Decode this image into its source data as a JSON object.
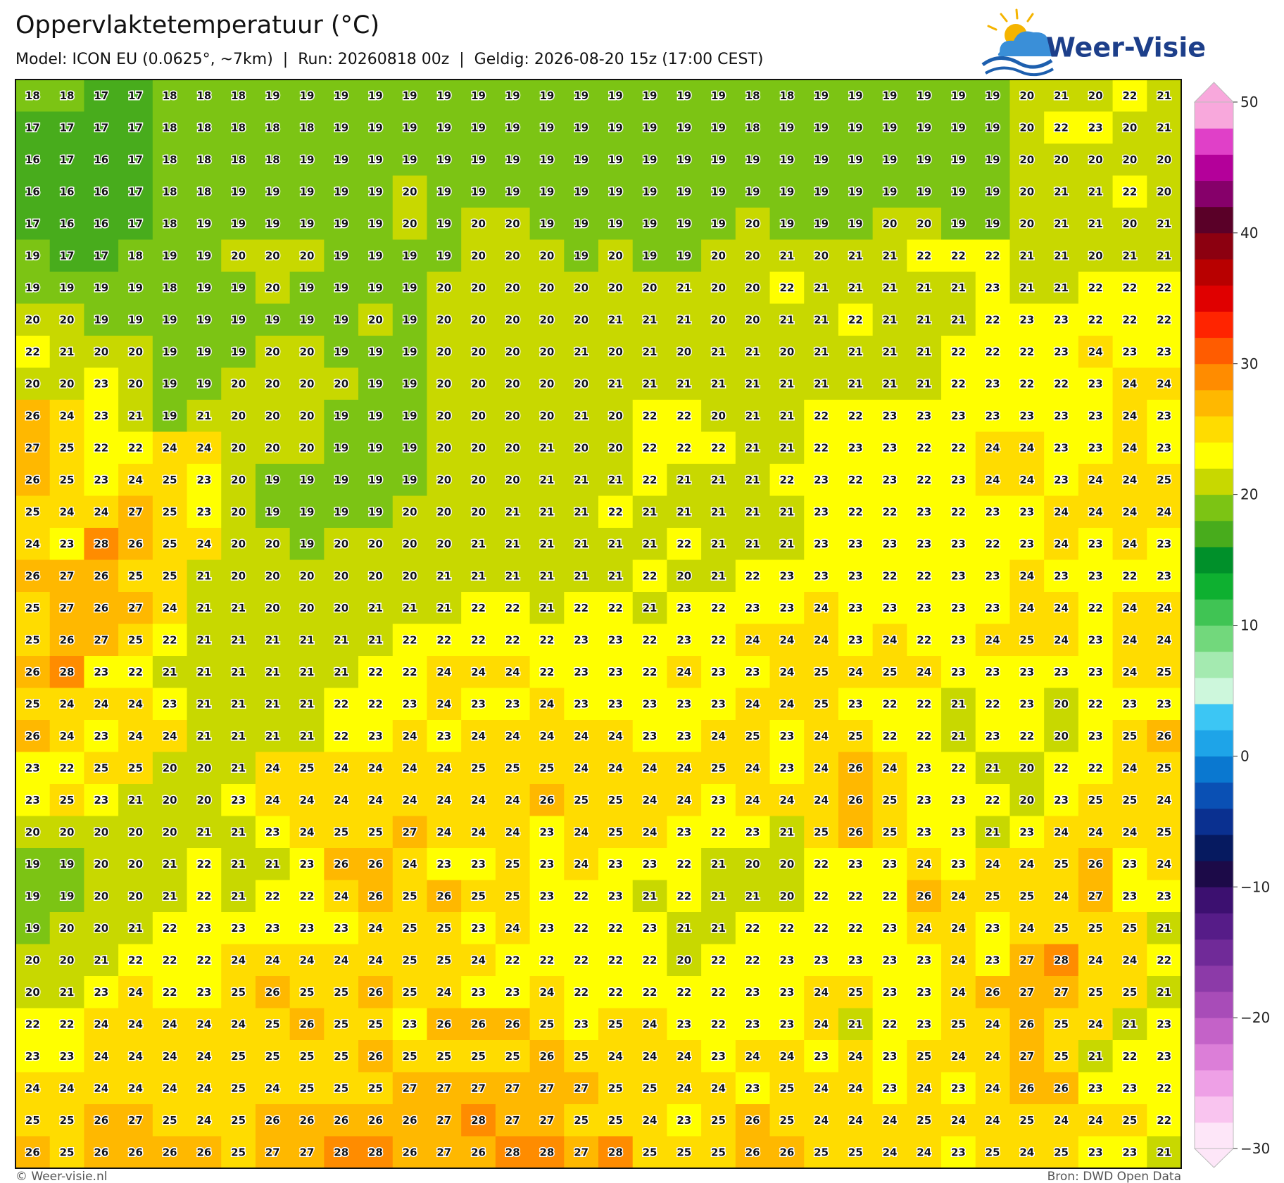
{
  "header": {
    "title": "Oppervlaktetemperatuur (°C)",
    "subtitle": "Model: ICON EU (0.0625°, ~7km)  |  Run: 20260818 00z  |  Geldig: 2026-08-20 15z (17:00 CEST)",
    "logo": "Weer-Visie"
  },
  "grid": {
    "rows": [
      [
        18,
        18,
        17,
        17,
        18,
        18,
        18,
        19,
        19,
        19,
        19,
        19,
        19,
        19,
        19,
        19,
        19,
        19,
        19,
        19,
        19,
        18,
        18,
        19,
        19,
        19,
        19,
        19,
        19,
        20,
        21,
        20,
        22,
        21
      ],
      [
        17,
        17,
        17,
        17,
        18,
        18,
        18,
        18,
        18,
        19,
        19,
        19,
        19,
        19,
        19,
        19,
        19,
        19,
        19,
        19,
        19,
        18,
        19,
        19,
        19,
        19,
        19,
        19,
        19,
        20,
        22,
        23,
        20,
        21
      ],
      [
        16,
        17,
        16,
        17,
        18,
        18,
        18,
        18,
        19,
        19,
        19,
        19,
        19,
        19,
        19,
        19,
        19,
        19,
        19,
        19,
        19,
        19,
        19,
        19,
        19,
        19,
        19,
        19,
        19,
        20,
        20,
        20,
        20,
        20
      ],
      [
        16,
        16,
        16,
        17,
        18,
        18,
        19,
        19,
        19,
        19,
        19,
        20,
        19,
        19,
        19,
        19,
        19,
        19,
        19,
        19,
        19,
        19,
        19,
        19,
        19,
        19,
        19,
        19,
        19,
        20,
        21,
        21,
        22,
        20
      ],
      [
        17,
        16,
        16,
        17,
        18,
        19,
        19,
        19,
        19,
        19,
        19,
        20,
        19,
        20,
        20,
        19,
        19,
        19,
        19,
        19,
        19,
        20,
        19,
        19,
        19,
        20,
        20,
        19,
        19,
        20,
        21,
        21,
        20,
        21
      ],
      [
        19,
        17,
        17,
        18,
        19,
        19,
        20,
        20,
        20,
        19,
        19,
        19,
        19,
        20,
        20,
        20,
        19,
        20,
        19,
        19,
        20,
        20,
        21,
        20,
        21,
        21,
        22,
        22,
        22,
        21,
        21,
        20,
        21,
        21
      ],
      [
        19,
        19,
        19,
        19,
        18,
        19,
        19,
        20,
        19,
        19,
        19,
        19,
        20,
        20,
        20,
        20,
        20,
        20,
        20,
        21,
        20,
        20,
        22,
        21,
        21,
        21,
        21,
        21,
        23,
        21,
        21,
        22,
        22,
        22
      ],
      [
        20,
        20,
        19,
        19,
        19,
        19,
        19,
        19,
        19,
        19,
        20,
        19,
        20,
        20,
        20,
        20,
        20,
        21,
        21,
        21,
        20,
        20,
        21,
        21,
        22,
        21,
        21,
        21,
        22,
        23,
        23,
        22,
        22,
        22
      ],
      [
        22,
        21,
        20,
        20,
        19,
        19,
        19,
        20,
        20,
        19,
        19,
        19,
        20,
        20,
        20,
        20,
        21,
        20,
        21,
        20,
        21,
        21,
        20,
        21,
        21,
        21,
        21,
        22,
        22,
        22,
        23,
        24,
        23,
        23
      ],
      [
        20,
        20,
        23,
        20,
        19,
        19,
        20,
        20,
        20,
        20,
        19,
        19,
        20,
        20,
        20,
        20,
        20,
        21,
        21,
        21,
        21,
        21,
        21,
        21,
        21,
        21,
        21,
        22,
        23,
        22,
        22,
        23,
        24,
        24
      ],
      [
        26,
        24,
        23,
        21,
        19,
        21,
        20,
        20,
        20,
        19,
        19,
        19,
        20,
        20,
        20,
        20,
        21,
        20,
        22,
        22,
        20,
        21,
        21,
        22,
        22,
        23,
        23,
        23,
        23,
        23,
        23,
        23,
        24,
        23
      ],
      [
        27,
        25,
        22,
        22,
        24,
        24,
        20,
        20,
        20,
        19,
        19,
        19,
        20,
        20,
        20,
        21,
        20,
        20,
        22,
        22,
        22,
        21,
        21,
        22,
        23,
        23,
        22,
        22,
        24,
        24,
        23,
        23,
        24,
        23
      ],
      [
        26,
        25,
        23,
        24,
        25,
        23,
        20,
        19,
        19,
        19,
        19,
        19,
        20,
        20,
        20,
        21,
        21,
        21,
        22,
        21,
        21,
        21,
        22,
        23,
        22,
        23,
        22,
        23,
        24,
        24,
        23,
        24,
        24,
        25
      ],
      [
        25,
        24,
        24,
        27,
        25,
        23,
        20,
        19,
        19,
        19,
        19,
        20,
        20,
        20,
        21,
        21,
        21,
        22,
        21,
        21,
        21,
        21,
        21,
        23,
        22,
        22,
        23,
        22,
        23,
        23,
        24,
        24,
        24,
        24
      ],
      [
        24,
        23,
        28,
        26,
        25,
        24,
        20,
        20,
        19,
        20,
        20,
        20,
        20,
        21,
        21,
        21,
        21,
        21,
        21,
        22,
        21,
        21,
        21,
        23,
        23,
        23,
        23,
        23,
        22,
        23,
        24,
        23,
        24,
        23
      ],
      [
        26,
        27,
        26,
        25,
        25,
        21,
        20,
        20,
        20,
        20,
        20,
        20,
        21,
        21,
        21,
        21,
        21,
        21,
        22,
        20,
        21,
        22,
        23,
        23,
        23,
        22,
        22,
        23,
        23,
        24,
        23,
        23,
        22,
        23
      ],
      [
        25,
        27,
        26,
        27,
        24,
        21,
        21,
        20,
        20,
        20,
        21,
        21,
        21,
        22,
        22,
        21,
        22,
        22,
        21,
        23,
        22,
        23,
        23,
        24,
        23,
        23,
        23,
        23,
        23,
        24,
        24,
        22,
        24,
        24
      ],
      [
        25,
        26,
        27,
        25,
        22,
        21,
        21,
        21,
        21,
        21,
        21,
        22,
        22,
        22,
        22,
        22,
        23,
        23,
        22,
        23,
        22,
        24,
        24,
        24,
        23,
        24,
        22,
        23,
        24,
        25,
        24,
        23,
        24,
        24
      ],
      [
        26,
        28,
        23,
        22,
        21,
        21,
        21,
        21,
        21,
        21,
        22,
        22,
        24,
        24,
        24,
        22,
        23,
        23,
        22,
        24,
        23,
        23,
        24,
        25,
        24,
        25,
        24,
        23,
        23,
        23,
        23,
        23,
        24,
        25
      ],
      [
        25,
        24,
        24,
        24,
        23,
        21,
        21,
        21,
        21,
        22,
        22,
        23,
        24,
        23,
        23,
        24,
        23,
        23,
        23,
        23,
        23,
        24,
        24,
        25,
        23,
        22,
        22,
        21,
        22,
        23,
        20,
        22,
        23,
        23
      ],
      [
        26,
        24,
        23,
        24,
        24,
        21,
        21,
        21,
        21,
        22,
        23,
        24,
        23,
        24,
        24,
        24,
        24,
        24,
        23,
        23,
        24,
        25,
        23,
        24,
        25,
        22,
        22,
        21,
        23,
        22,
        20,
        23,
        25,
        26
      ],
      [
        23,
        22,
        25,
        25,
        20,
        20,
        21,
        24,
        25,
        24,
        24,
        24,
        24,
        25,
        25,
        25,
        24,
        24,
        24,
        24,
        25,
        24,
        23,
        24,
        26,
        24,
        23,
        22,
        21,
        20,
        22,
        22,
        24,
        25
      ],
      [
        23,
        25,
        23,
        21,
        20,
        20,
        23,
        24,
        24,
        24,
        24,
        24,
        24,
        24,
        24,
        26,
        25,
        25,
        24,
        24,
        23,
        24,
        24,
        24,
        26,
        25,
        23,
        23,
        22,
        20,
        23,
        25,
        25,
        24
      ],
      [
        20,
        20,
        20,
        20,
        20,
        21,
        21,
        23,
        24,
        25,
        25,
        27,
        24,
        24,
        24,
        23,
        24,
        25,
        24,
        23,
        22,
        23,
        21,
        25,
        26,
        25,
        23,
        23,
        21,
        23,
        24,
        24,
        24,
        25
      ],
      [
        19,
        19,
        20,
        20,
        21,
        22,
        21,
        21,
        23,
        26,
        26,
        24,
        23,
        23,
        25,
        23,
        24,
        23,
        23,
        22,
        21,
        20,
        20,
        22,
        23,
        23,
        24,
        23,
        24,
        24,
        25,
        26,
        23,
        24
      ],
      [
        19,
        19,
        20,
        20,
        21,
        22,
        21,
        22,
        22,
        24,
        26,
        25,
        26,
        25,
        25,
        23,
        22,
        23,
        21,
        22,
        21,
        21,
        20,
        22,
        22,
        22,
        26,
        24,
        25,
        25,
        24,
        27,
        23,
        23
      ],
      [
        19,
        20,
        20,
        21,
        22,
        23,
        23,
        23,
        23,
        23,
        24,
        25,
        25,
        23,
        24,
        23,
        22,
        22,
        23,
        21,
        21,
        22,
        22,
        22,
        22,
        23,
        24,
        24,
        23,
        24,
        25,
        25,
        25,
        21
      ],
      [
        20,
        20,
        21,
        22,
        22,
        22,
        24,
        24,
        24,
        24,
        24,
        25,
        25,
        24,
        22,
        22,
        22,
        22,
        22,
        20,
        22,
        22,
        23,
        23,
        23,
        23,
        23,
        24,
        23,
        27,
        28,
        24,
        24,
        22
      ],
      [
        20,
        21,
        23,
        24,
        22,
        23,
        25,
        26,
        25,
        25,
        26,
        25,
        24,
        23,
        23,
        24,
        22,
        22,
        22,
        22,
        22,
        23,
        23,
        24,
        25,
        23,
        23,
        24,
        26,
        27,
        27,
        25,
        25,
        21
      ],
      [
        22,
        22,
        24,
        24,
        24,
        24,
        24,
        25,
        26,
        25,
        25,
        23,
        26,
        26,
        26,
        25,
        23,
        25,
        24,
        23,
        22,
        23,
        23,
        24,
        21,
        22,
        23,
        25,
        24,
        26,
        25,
        24,
        21,
        23
      ],
      [
        23,
        23,
        24,
        24,
        24,
        24,
        25,
        25,
        25,
        25,
        26,
        25,
        25,
        25,
        25,
        26,
        25,
        24,
        24,
        24,
        23,
        24,
        24,
        23,
        24,
        23,
        25,
        24,
        24,
        27,
        25,
        21,
        22,
        23
      ],
      [
        24,
        24,
        24,
        24,
        24,
        24,
        25,
        24,
        25,
        25,
        25,
        27,
        27,
        27,
        27,
        27,
        27,
        25,
        25,
        24,
        24,
        23,
        25,
        24,
        24,
        23,
        24,
        23,
        24,
        26,
        26,
        23,
        23,
        22
      ],
      [
        25,
        25,
        26,
        27,
        25,
        24,
        25,
        26,
        26,
        26,
        26,
        26,
        27,
        28,
        27,
        27,
        25,
        25,
        24,
        23,
        25,
        26,
        25,
        24,
        24,
        24,
        25,
        24,
        24,
        25,
        24,
        24,
        25,
        22
      ],
      [
        26,
        25,
        26,
        26,
        26,
        26,
        25,
        27,
        27,
        28,
        28,
        26,
        27,
        26,
        28,
        28,
        27,
        28,
        25,
        25,
        25,
        26,
        26,
        25,
        25,
        24,
        24,
        23,
        25,
        24,
        25,
        23,
        23,
        21
      ]
    ]
  },
  "colorbar": {
    "lim": [
      -30,
      50
    ],
    "ticks": [
      {
        "value": -30,
        "label": "−30"
      },
      {
        "value": -20,
        "label": "−20"
      },
      {
        "value": -10,
        "label": "−10"
      },
      0,
      10,
      20,
      30,
      40,
      50
    ],
    "colors": [
      "#fde6f8",
      "#f9c4ef",
      "#eea0e6",
      "#dc7ed8",
      "#c462c8",
      "#a84cb8",
      "#8c3aa8",
      "#702a98",
      "#561c88",
      "#3c1070",
      "#1c0a48",
      "#061a60",
      "#0a3090",
      "#0a50b4",
      "#0a78d0",
      "#1ea4e8",
      "#3cc6f4",
      "#cdf7dc",
      "#a4eab0",
      "#72d87c",
      "#40c454",
      "#0eb030",
      "#00902a",
      "#48ac1c",
      "#7cc414",
      "#c8d800",
      "#ffff00",
      "#ffdc00",
      "#ffb800",
      "#ff8c00",
      "#ff5c00",
      "#ff2400",
      "#e00000",
      "#b80000",
      "#8c0010",
      "#5a0028",
      "#86006a",
      "#b4009a",
      "#e040c8",
      "#f8a8dc"
    ]
  },
  "footer": {
    "left": "© Weer-visie.nl",
    "right": "Bron: DWD Open Data"
  }
}
